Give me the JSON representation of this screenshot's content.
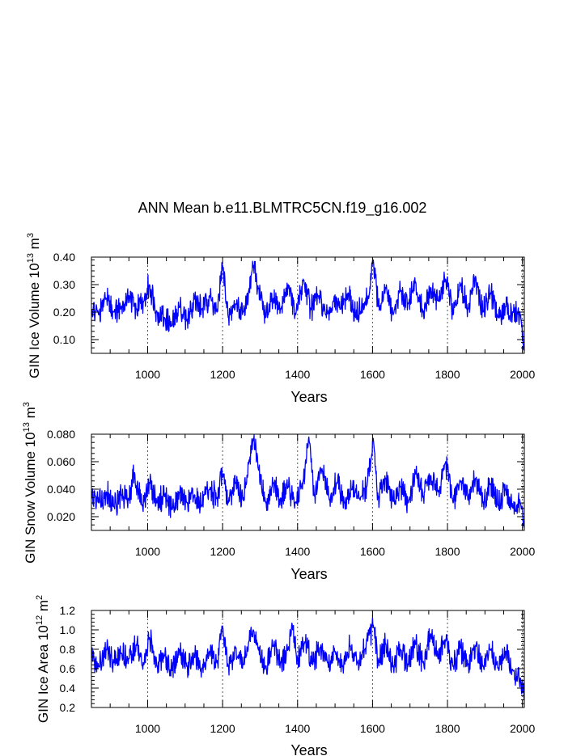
{
  "figure_title": "ANN Mean b.e11.BLMTRC5CN.f19_g16.002",
  "series_color": "#0000ff",
  "chart_data": [
    {
      "type": "line",
      "title": "ANN Mean b.e11.BLMTRC5CN.f19_g16.002",
      "xlabel": "Years",
      "ylabel": "GIN Ice Volume 10^13 m^3",
      "ylabel_parts": {
        "pre": "GIN Ice Volume 10",
        "exp1": "13",
        "mid": " m",
        "exp2": "3"
      },
      "xlim": [
        850,
        2005
      ],
      "ylim": [
        0.05,
        0.4
      ],
      "xticks": [
        1000,
        1200,
        1400,
        1600,
        1800,
        2000
      ],
      "xtick_labels": [
        "1000",
        "1200",
        "1400",
        "1600",
        "1800",
        "2000"
      ],
      "yticks": [
        0.1,
        0.2,
        0.3,
        0.4
      ],
      "ytick_labels": [
        "0.10",
        "0.20",
        "0.30",
        "0.40"
      ],
      "grid": "dotted vertical lines at major x ticks",
      "series": [
        {
          "name": "GIN Ice Volume",
          "x": [
            850,
            870,
            890,
            910,
            930,
            950,
            970,
            990,
            1005,
            1025,
            1045,
            1065,
            1085,
            1105,
            1125,
            1145,
            1165,
            1185,
            1200,
            1215,
            1235,
            1255,
            1270,
            1282,
            1295,
            1315,
            1335,
            1355,
            1375,
            1395,
            1415,
            1435,
            1455,
            1475,
            1495,
            1515,
            1535,
            1555,
            1575,
            1590,
            1602,
            1615,
            1635,
            1655,
            1675,
            1695,
            1715,
            1735,
            1755,
            1775,
            1795,
            1815,
            1835,
            1855,
            1875,
            1895,
            1915,
            1935,
            1955,
            1975,
            1995,
            2005
          ],
          "values": [
            0.21,
            0.19,
            0.25,
            0.2,
            0.22,
            0.26,
            0.21,
            0.24,
            0.3,
            0.2,
            0.18,
            0.15,
            0.22,
            0.17,
            0.25,
            0.21,
            0.26,
            0.2,
            0.37,
            0.18,
            0.23,
            0.2,
            0.28,
            0.37,
            0.29,
            0.18,
            0.25,
            0.21,
            0.3,
            0.19,
            0.32,
            0.21,
            0.26,
            0.19,
            0.24,
            0.21,
            0.27,
            0.18,
            0.23,
            0.25,
            0.39,
            0.22,
            0.29,
            0.19,
            0.28,
            0.23,
            0.31,
            0.2,
            0.29,
            0.24,
            0.32,
            0.19,
            0.3,
            0.21,
            0.33,
            0.2,
            0.27,
            0.18,
            0.22,
            0.2,
            0.19,
            0.06
          ]
        }
      ]
    },
    {
      "type": "line",
      "xlabel": "Years",
      "ylabel": "GIN Snow Volume 10^13 m^3",
      "ylabel_parts": {
        "pre": "GIN Snow Volume 10",
        "exp1": "13",
        "mid": " m",
        "exp2": "3"
      },
      "xlim": [
        850,
        2005
      ],
      "ylim": [
        0.01,
        0.08
      ],
      "xticks": [
        1000,
        1200,
        1400,
        1600,
        1800,
        2000
      ],
      "xtick_labels": [
        "1000",
        "1200",
        "1400",
        "1600",
        "1800",
        "2000"
      ],
      "yticks": [
        0.02,
        0.04,
        0.06,
        0.08
      ],
      "ytick_labels": [
        "0.020",
        "0.040",
        "0.060",
        "0.080"
      ],
      "grid": "dotted vertical lines at major x ticks",
      "series": [
        {
          "name": "GIN Snow Volume",
          "x": [
            850,
            870,
            890,
            910,
            930,
            950,
            965,
            985,
            1005,
            1025,
            1045,
            1065,
            1085,
            1105,
            1125,
            1145,
            1165,
            1185,
            1200,
            1215,
            1235,
            1255,
            1270,
            1282,
            1295,
            1315,
            1335,
            1355,
            1375,
            1395,
            1415,
            1430,
            1445,
            1465,
            1485,
            1505,
            1525,
            1545,
            1565,
            1585,
            1602,
            1615,
            1635,
            1655,
            1675,
            1695,
            1715,
            1735,
            1755,
            1775,
            1795,
            1815,
            1835,
            1855,
            1875,
            1895,
            1915,
            1935,
            1955,
            1975,
            1995,
            2005
          ],
          "values": [
            0.034,
            0.03,
            0.038,
            0.027,
            0.036,
            0.032,
            0.052,
            0.028,
            0.045,
            0.03,
            0.035,
            0.025,
            0.038,
            0.03,
            0.036,
            0.028,
            0.04,
            0.033,
            0.05,
            0.03,
            0.045,
            0.032,
            0.06,
            0.077,
            0.055,
            0.03,
            0.045,
            0.033,
            0.042,
            0.03,
            0.046,
            0.078,
            0.035,
            0.055,
            0.032,
            0.045,
            0.03,
            0.04,
            0.033,
            0.042,
            0.077,
            0.034,
            0.048,
            0.031,
            0.042,
            0.03,
            0.052,
            0.034,
            0.05,
            0.038,
            0.06,
            0.03,
            0.046,
            0.032,
            0.048,
            0.03,
            0.044,
            0.028,
            0.04,
            0.026,
            0.03,
            0.012
          ]
        }
      ]
    },
    {
      "type": "line",
      "xlabel": "Years",
      "ylabel": "GIN Ice Area 10^12 m^2",
      "ylabel_parts": {
        "pre": "GIN Ice Area 10",
        "exp1": "12",
        "mid": " m",
        "exp2": "2"
      },
      "xlim": [
        850,
        2005
      ],
      "ylim": [
        0.2,
        1.2
      ],
      "xticks": [
        1000,
        1200,
        1400,
        1600,
        1800,
        2000
      ],
      "xtick_labels": [
        "1000",
        "1200",
        "1400",
        "1600",
        "1800",
        "2000"
      ],
      "yticks": [
        0.2,
        0.4,
        0.6,
        0.8,
        1.0,
        1.2
      ],
      "ytick_labels": [
        "0.2",
        "0.4",
        "0.6",
        "0.8",
        "1.0",
        "1.2"
      ],
      "grid": "dotted vertical lines at major x ticks",
      "series": [
        {
          "name": "GIN Ice Area",
          "x": [
            850,
            870,
            890,
            910,
            930,
            950,
            970,
            990,
            1005,
            1025,
            1045,
            1065,
            1085,
            1105,
            1125,
            1145,
            1165,
            1185,
            1200,
            1215,
            1235,
            1255,
            1270,
            1282,
            1295,
            1315,
            1335,
            1355,
            1375,
            1385,
            1400,
            1420,
            1440,
            1460,
            1480,
            1500,
            1520,
            1540,
            1560,
            1580,
            1602,
            1615,
            1635,
            1655,
            1675,
            1695,
            1715,
            1735,
            1755,
            1775,
            1795,
            1815,
            1835,
            1855,
            1875,
            1895,
            1915,
            1935,
            1955,
            1975,
            1995,
            2005
          ],
          "values": [
            0.72,
            0.62,
            0.8,
            0.66,
            0.76,
            0.7,
            0.85,
            0.64,
            0.92,
            0.62,
            0.74,
            0.58,
            0.8,
            0.62,
            0.72,
            0.6,
            0.78,
            0.66,
            1.04,
            0.62,
            0.82,
            0.64,
            0.88,
            1.0,
            0.8,
            0.62,
            0.84,
            0.66,
            0.8,
            1.07,
            0.7,
            0.88,
            0.64,
            0.82,
            0.66,
            0.78,
            0.62,
            0.84,
            0.66,
            0.8,
            1.05,
            0.68,
            0.86,
            0.62,
            0.8,
            0.64,
            0.86,
            0.66,
            0.96,
            0.7,
            0.9,
            0.62,
            0.82,
            0.64,
            0.84,
            0.62,
            0.8,
            0.6,
            0.78,
            0.58,
            0.5,
            0.28
          ]
        }
      ]
    }
  ]
}
